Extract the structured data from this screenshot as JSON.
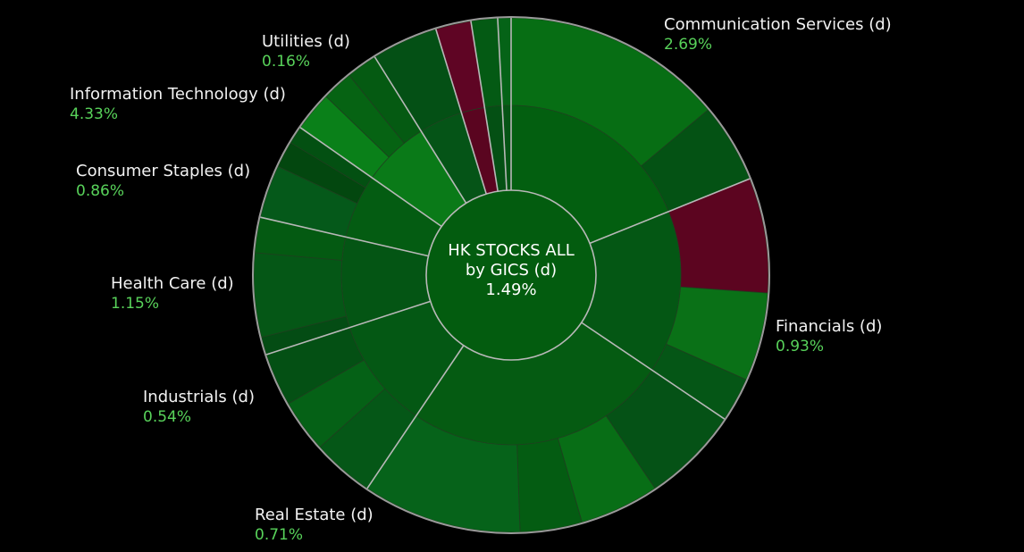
{
  "chart_data": {
    "type": "sunburst",
    "center": {
      "line1": "HK STOCKS ALL",
      "line2": "by GICS (d)",
      "value": "1.49%"
    },
    "sectors": [
      {
        "name": "Communication Services (d)",
        "change": "2.69%",
        "inner_color": "#035f10",
        "segments": [
          {
            "color": "#076e14"
          },
          {
            "color": "#045214"
          }
        ]
      },
      {
        "name": "Financials (d)",
        "change": "0.93%",
        "inner_color": "#045714",
        "segments": [
          {
            "color": "#5c0520"
          },
          {
            "color": "#0a7117"
          },
          {
            "color": "#055616"
          }
        ]
      },
      {
        "name": "Real Estate (d)",
        "change": "0.71%",
        "inner_color": "#055b12",
        "segments": [
          {
            "color": "#055216"
          },
          {
            "color": "#086e16"
          },
          {
            "color": "#045c12"
          },
          {
            "color": "#06631a"
          }
        ]
      },
      {
        "name": "Industrials (d)",
        "change": "0.54%",
        "inner_color": "#045814",
        "segments": [
          {
            "color": "#055717"
          },
          {
            "color": "#056116"
          },
          {
            "color": "#045014"
          }
        ]
      },
      {
        "name": "Health Care (d)",
        "change": "1.15%",
        "inner_color": "#045514",
        "segments": [
          {
            "color": "#044c14"
          },
          {
            "color": "#055716"
          },
          {
            "color": "#045a12"
          }
        ]
      },
      {
        "name": "Consumer Staples (d)",
        "change": "0.86%",
        "inner_color": "#045c12",
        "segments": [
          {
            "color": "#05591a"
          },
          {
            "color": "#03470f"
          },
          {
            "color": "#035012"
          }
        ]
      },
      {
        "name": "Information Technology (d)",
        "change": "4.33%",
        "inner_color": "#0a7a18",
        "segments": [
          {
            "color": "#0a8019"
          },
          {
            "color": "#066313"
          },
          {
            "color": "#055a12"
          }
        ]
      },
      {
        "name": "Utilities (d)",
        "change": "0.16%",
        "inner_color": "#055417",
        "segments": [
          {
            "color": "#045015"
          }
        ]
      },
      {
        "name": "",
        "change": "",
        "inner_color": "#5a0520",
        "segments": [
          {
            "color": "#5f0524"
          }
        ]
      },
      {
        "name": "",
        "change": "",
        "inner_color": "#045014",
        "segments": [
          {
            "color": "#045a14"
          }
        ]
      },
      {
        "name": "",
        "change": "",
        "inner_color": "#055415",
        "segments": [
          {
            "color": "#056317"
          }
        ]
      }
    ]
  }
}
